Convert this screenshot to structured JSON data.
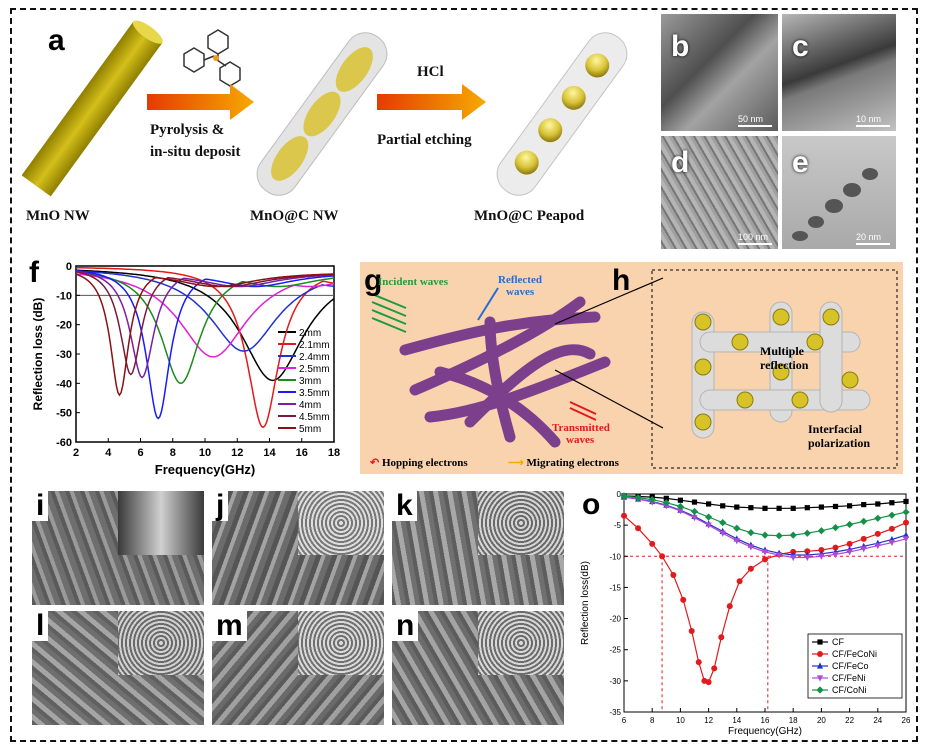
{
  "labels": [
    "a",
    "b",
    "c",
    "d",
    "e",
    "f",
    "g",
    "h",
    "i",
    "j",
    "k",
    "l",
    "m",
    "n",
    "o"
  ],
  "panel_a": {
    "arrow1_text": [
      "Pyrolysis &",
      "in-situ deposit"
    ],
    "arrow2_label": "HCl",
    "arrow2_text": "Partial etching",
    "captions": [
      "MnO NW",
      "MnO@C NW",
      "MnO@C Peapod"
    ]
  },
  "tem_scalebars": {
    "b": "50 nm",
    "c": "10 nm",
    "d": "100 nm",
    "e": "20 nm"
  },
  "panel_g": {
    "incident": "Incident waves",
    "reflected": [
      "Reflected",
      "waves"
    ],
    "transmitted": [
      "Transmitted",
      "waves"
    ],
    "legend_hopping": "Hopping electrons",
    "legend_migrating": "Migrating electrons"
  },
  "panel_h": {
    "multiple": [
      "Multiple",
      "reflection"
    ],
    "interfacial": [
      "Interfacial",
      "polarization"
    ]
  },
  "colors": {
    "peach": "#f9d2ae",
    "fiber": "#7b3f8c",
    "rod": "#c9b400",
    "arrow_red": "#e53b00",
    "arrow_orange": "#f7a900"
  },
  "chart_data": [
    {
      "id": "f",
      "type": "line",
      "xlabel": "Frequency(GHz)",
      "ylabel": "Reflection loss (dB)",
      "xlim": [
        2,
        18
      ],
      "ylim": [
        -60,
        0
      ],
      "xticks": [
        2,
        4,
        6,
        8,
        10,
        12,
        14,
        16,
        18
      ],
      "yticks": [
        0,
        -10,
        -20,
        -30,
        -40,
        -50,
        -60
      ],
      "reference_line": -10,
      "legend_position": "right",
      "series": [
        {
          "name": "2mm",
          "color": "#000000",
          "min_x": 14.2,
          "min_y": -39,
          "width": 2.4
        },
        {
          "name": "2.1mm",
          "color": "#e3191b",
          "min_x": 13.6,
          "min_y": -55,
          "width": 1.2
        },
        {
          "name": "2.4mm",
          "color": "#2233cc",
          "min_x": 12.4,
          "min_y": -29,
          "width": 2.6
        },
        {
          "name": "2.5mm",
          "color": "#e01fd8",
          "min_x": 10.5,
          "min_y": -31,
          "width": 2.6
        },
        {
          "name": "3mm",
          "color": "#1d8a1d",
          "min_x": 8.5,
          "min_y": -40,
          "width": 1.5
        },
        {
          "name": "3.5mm",
          "color": "#1a1aff",
          "min_x": 7.1,
          "min_y": -52,
          "width": 0.9
        },
        {
          "name": "4mm",
          "color": "#7b1fa2",
          "min_x": 6.1,
          "min_y": -38,
          "width": 0.9
        },
        {
          "name": "4.5mm",
          "color": "#7a1a3a",
          "min_x": 5.4,
          "min_y": -37,
          "width": 0.8
        },
        {
          "name": "5mm",
          "color": "#8b1010",
          "min_x": 4.7,
          "min_y": -44,
          "width": 0.7
        }
      ]
    },
    {
      "id": "o",
      "type": "line",
      "xlabel": "Frequency(GHz)",
      "ylabel": "Reflection loss(dB)",
      "xlim": [
        6,
        26
      ],
      "ylim": [
        -35,
        0
      ],
      "xticks": [
        6,
        8,
        10,
        12,
        14,
        16,
        18,
        20,
        22,
        24,
        26
      ],
      "yticks": [
        0,
        -5,
        -10,
        -15,
        -20,
        -25,
        -30,
        -35
      ],
      "reference_line": -10,
      "vertical_lines": [
        8.7,
        16.2
      ],
      "legend_position": "bottom-right",
      "series": [
        {
          "name": "CF",
          "color": "#000000",
          "marker": "square",
          "x": [
            6,
            7,
            8,
            9,
            10,
            11,
            12,
            13,
            14,
            15,
            16,
            17,
            18,
            19,
            20,
            21,
            22,
            23,
            24,
            25,
            26
          ],
          "y": [
            -0.3,
            -0.4,
            -0.5,
            -0.7,
            -1.0,
            -1.3,
            -1.6,
            -1.9,
            -2.1,
            -2.2,
            -2.3,
            -2.3,
            -2.3,
            -2.2,
            -2.1,
            -2.0,
            -1.9,
            -1.7,
            -1.6,
            -1.4,
            -1.2
          ]
        },
        {
          "name": "CF/FeCoNi",
          "color": "#e3191b",
          "marker": "circle",
          "x": [
            6,
            7,
            8,
            8.7,
            9.5,
            10.2,
            10.8,
            11.3,
            11.7,
            12,
            12.4,
            12.9,
            13.5,
            14.2,
            15,
            16,
            17,
            18,
            19,
            20,
            21,
            22,
            23,
            24,
            25,
            26
          ],
          "y": [
            -3.5,
            -5.5,
            -8,
            -10,
            -13,
            -17,
            -22,
            -27,
            -30,
            -30.2,
            -28,
            -23,
            -18,
            -14,
            -12,
            -10.5,
            -9.7,
            -9.3,
            -9.2,
            -9.0,
            -8.6,
            -8.0,
            -7.2,
            -6.4,
            -5.6,
            -4.6
          ]
        },
        {
          "name": "CF/FeCo",
          "color": "#2233cc",
          "marker": "triangle",
          "x": [
            6,
            7,
            8,
            9,
            10,
            11,
            12,
            13,
            14,
            15,
            16,
            17,
            18,
            19,
            20,
            21,
            22,
            23,
            24,
            25,
            26
          ],
          "y": [
            -0.5,
            -0.8,
            -1.2,
            -1.8,
            -2.6,
            -3.6,
            -4.8,
            -6.0,
            -7.2,
            -8.2,
            -9.0,
            -9.5,
            -9.8,
            -9.8,
            -9.6,
            -9.3,
            -8.9,
            -8.4,
            -7.9,
            -7.3,
            -6.6
          ]
        },
        {
          "name": "CF/FeNi",
          "color": "#b048d8",
          "marker": "triangle-down",
          "x": [
            6,
            7,
            8,
            9,
            10,
            11,
            12,
            13,
            14,
            15,
            16,
            17,
            18,
            19,
            20,
            21,
            22,
            23,
            24,
            25,
            26
          ],
          "y": [
            -0.5,
            -0.8,
            -1.3,
            -1.9,
            -2.7,
            -3.8,
            -5.0,
            -6.3,
            -7.5,
            -8.5,
            -9.3,
            -9.8,
            -10.2,
            -10.2,
            -10.0,
            -9.7,
            -9.3,
            -8.8,
            -8.3,
            -7.8,
            -7.2
          ]
        },
        {
          "name": "CF/CoNi",
          "color": "#139148",
          "marker": "diamond",
          "x": [
            6,
            7,
            8,
            9,
            10,
            11,
            12,
            13,
            14,
            15,
            16,
            17,
            18,
            19,
            20,
            21,
            22,
            23,
            24,
            25,
            26
          ],
          "y": [
            -0.3,
            -0.6,
            -0.9,
            -1.4,
            -2.0,
            -2.8,
            -3.7,
            -4.6,
            -5.5,
            -6.2,
            -6.6,
            -6.7,
            -6.6,
            -6.3,
            -5.9,
            -5.4,
            -4.9,
            -4.4,
            -3.9,
            -3.4,
            -2.9
          ]
        }
      ]
    }
  ]
}
